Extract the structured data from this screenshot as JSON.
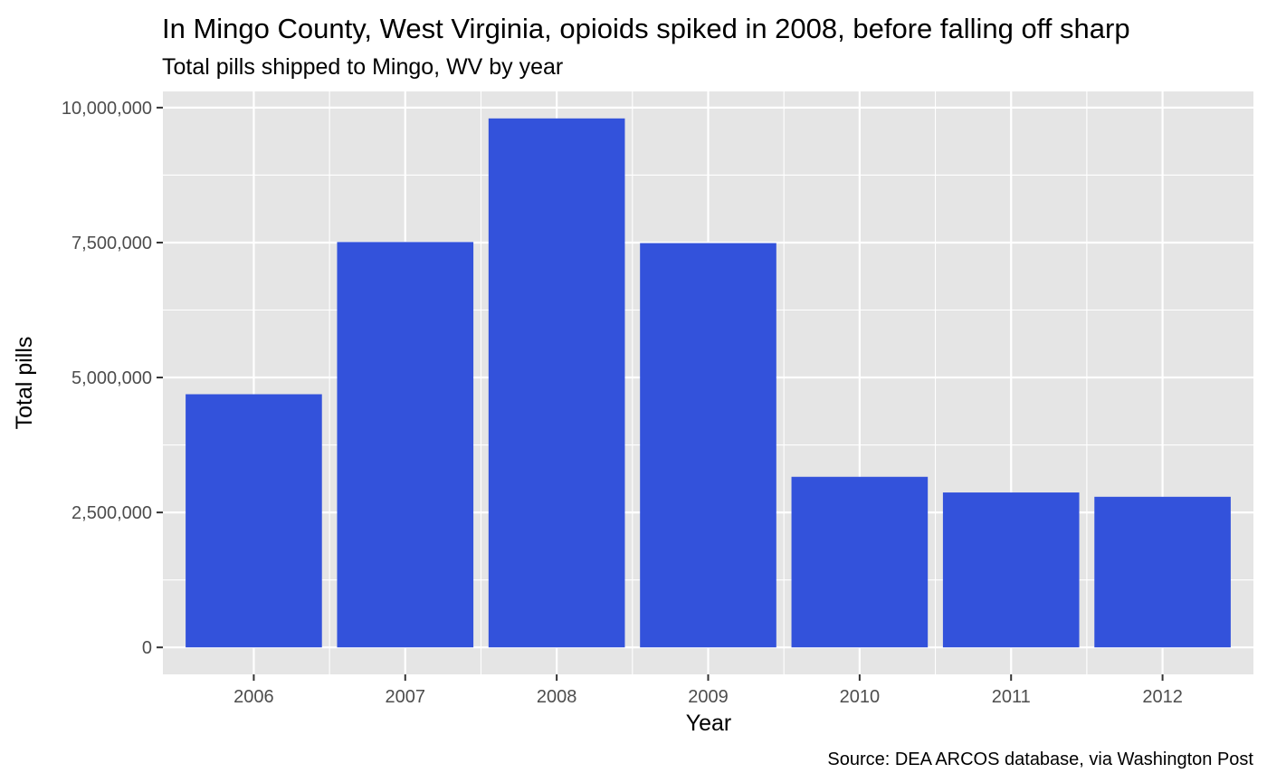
{
  "chart_data": {
    "type": "bar",
    "title": "In Mingo County, West Virginia, opioids spiked in 2008, before falling off sharp",
    "subtitle": "Total pills shipped to Mingo, WV by year",
    "xlabel": "Year",
    "ylabel": "Total pills",
    "caption": "Source: DEA ARCOS database, via Washington Post",
    "categories": [
      "2006",
      "2007",
      "2008",
      "2009",
      "2010",
      "2011",
      "2012"
    ],
    "values": [
      4690000,
      7510000,
      9800000,
      7490000,
      3160000,
      2870000,
      2790000
    ],
    "ylim": [
      -500000,
      10300000
    ],
    "yticks": [
      0,
      2500000,
      5000000,
      7500000,
      10000000
    ],
    "ytick_labels": [
      "0",
      "2,500,000",
      "5,000,000",
      "7,500,000",
      "10,000,000"
    ],
    "bar_color": "#3352db",
    "panel_background": "#e5e5e5",
    "grid": true,
    "legend": "none"
  }
}
